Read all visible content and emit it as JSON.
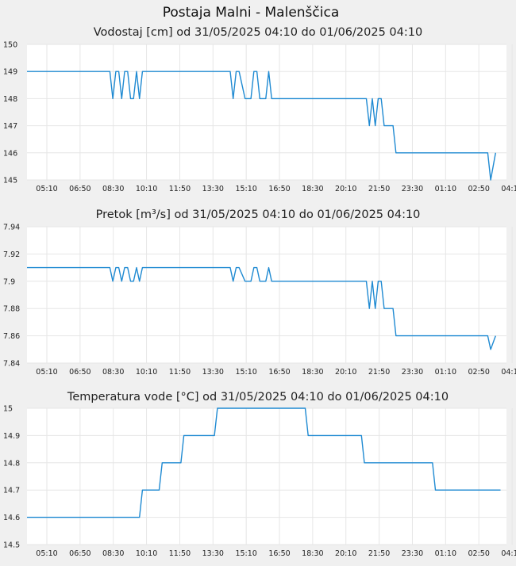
{
  "page_title": "Postaja Malni - Malenščica",
  "colors": {
    "line": "#1f8ad2",
    "grid": "#e6e6e6",
    "plot_bg": "#ffffff",
    "page_bg": "#f0f0f0"
  },
  "chart_data": [
    {
      "type": "line",
      "title": "Vodostaj [cm] od 31/05/2025 04:10 do 01/06/2025 04:10",
      "x_ticks": [
        "05:10",
        "06:50",
        "08:30",
        "10:10",
        "11:50",
        "13:30",
        "15:10",
        "16:50",
        "18:30",
        "20:10",
        "21:50",
        "23:30",
        "01:10",
        "02:50",
        "04:10"
      ],
      "y_ticks": [
        "150",
        "149",
        "148",
        "147",
        "146",
        "145"
      ],
      "ylim": [
        145,
        150
      ],
      "xlim_hours": [
        0,
        24.3
      ],
      "grid": true,
      "series": [
        {
          "x": [
            0,
            4.2,
            4.35,
            4.5,
            4.65,
            4.8,
            4.95,
            5.1,
            5.25,
            5.4,
            5.55,
            5.7,
            5.85,
            6.0,
            6.15,
            6.3,
            6.45,
            10.3,
            10.45,
            10.6,
            10.75,
            11.05,
            11.2,
            11.35,
            11.5,
            11.65,
            11.8,
            11.95,
            12.1,
            12.25,
            12.4,
            12.55,
            12.7,
            17.2,
            17.35,
            17.5,
            17.65,
            17.8,
            17.95,
            18.1,
            18.25,
            18.55,
            18.7,
            18.95,
            19.1,
            23.35,
            23.5,
            23.75
          ],
          "y": [
            149,
            149,
            148,
            149,
            149,
            148,
            149,
            149,
            148,
            148,
            149,
            148,
            149,
            149,
            149,
            149,
            149,
            149,
            148,
            149,
            149,
            148,
            148,
            148,
            149,
            149,
            148,
            148,
            148,
            149,
            148,
            148,
            148,
            148,
            147,
            148,
            147,
            148,
            148,
            147,
            147,
            147,
            146,
            146,
            146,
            146,
            145,
            146
          ]
        }
      ]
    },
    {
      "type": "line",
      "title": "Pretok [m³/s] od 31/05/2025 04:10 do 01/06/2025 04:10",
      "x_ticks": [
        "05:10",
        "06:50",
        "08:30",
        "10:10",
        "11:50",
        "13:30",
        "15:10",
        "16:50",
        "18:30",
        "20:10",
        "21:50",
        "23:30",
        "01:10",
        "02:50",
        "04:10"
      ],
      "y_ticks": [
        "7.94",
        "7.92",
        "7.9",
        "7.88",
        "7.86",
        "7.84"
      ],
      "ylim": [
        7.84,
        7.94
      ],
      "xlim_hours": [
        0,
        24.3
      ],
      "grid": true,
      "series": [
        {
          "x": [
            0,
            4.2,
            4.35,
            4.5,
            4.65,
            4.8,
            4.95,
            5.1,
            5.25,
            5.4,
            5.55,
            5.7,
            5.85,
            6.0,
            6.15,
            6.3,
            6.45,
            10.3,
            10.45,
            10.6,
            10.75,
            11.05,
            11.2,
            11.35,
            11.5,
            11.65,
            11.8,
            11.95,
            12.1,
            12.25,
            12.4,
            12.55,
            12.7,
            17.2,
            17.35,
            17.5,
            17.65,
            17.8,
            17.95,
            18.1,
            18.25,
            18.55,
            18.7,
            18.95,
            19.1,
            23.35,
            23.5,
            23.75
          ],
          "y": [
            7.91,
            7.91,
            7.9,
            7.91,
            7.91,
            7.9,
            7.91,
            7.91,
            7.9,
            7.9,
            7.91,
            7.9,
            7.91,
            7.91,
            7.91,
            7.91,
            7.91,
            7.91,
            7.9,
            7.91,
            7.91,
            7.9,
            7.9,
            7.9,
            7.91,
            7.91,
            7.9,
            7.9,
            7.9,
            7.91,
            7.9,
            7.9,
            7.9,
            7.9,
            7.88,
            7.9,
            7.88,
            7.9,
            7.9,
            7.88,
            7.88,
            7.88,
            7.86,
            7.86,
            7.86,
            7.86,
            7.85,
            7.86
          ]
        }
      ]
    },
    {
      "type": "line",
      "title": "Temperatura vode [°C] od 31/05/2025 04:10 do 01/06/2025 04:10",
      "x_ticks": [
        "05:10",
        "06:50",
        "08:30",
        "10:10",
        "11:50",
        "13:30",
        "15:10",
        "16:50",
        "18:30",
        "20:10",
        "21:50",
        "23:30",
        "01:10",
        "02:50",
        "04:10"
      ],
      "y_ticks": [
        "15",
        "14.9",
        "14.8",
        "14.7",
        "14.6",
        "14.5"
      ],
      "ylim": [
        14.5,
        15
      ],
      "xlim_hours": [
        0,
        24.3
      ],
      "grid": true,
      "series": [
        {
          "x": [
            0,
            5.7,
            5.85,
            6.7,
            6.85,
            7.8,
            7.95,
            9.5,
            9.65,
            14.1,
            14.25,
            16.95,
            17.1,
            20.55,
            20.7,
            24
          ],
          "y": [
            14.6,
            14.6,
            14.7,
            14.7,
            14.8,
            14.8,
            14.9,
            14.9,
            15.0,
            15.0,
            14.9,
            14.9,
            14.8,
            14.8,
            14.7,
            14.7
          ]
        }
      ]
    }
  ]
}
